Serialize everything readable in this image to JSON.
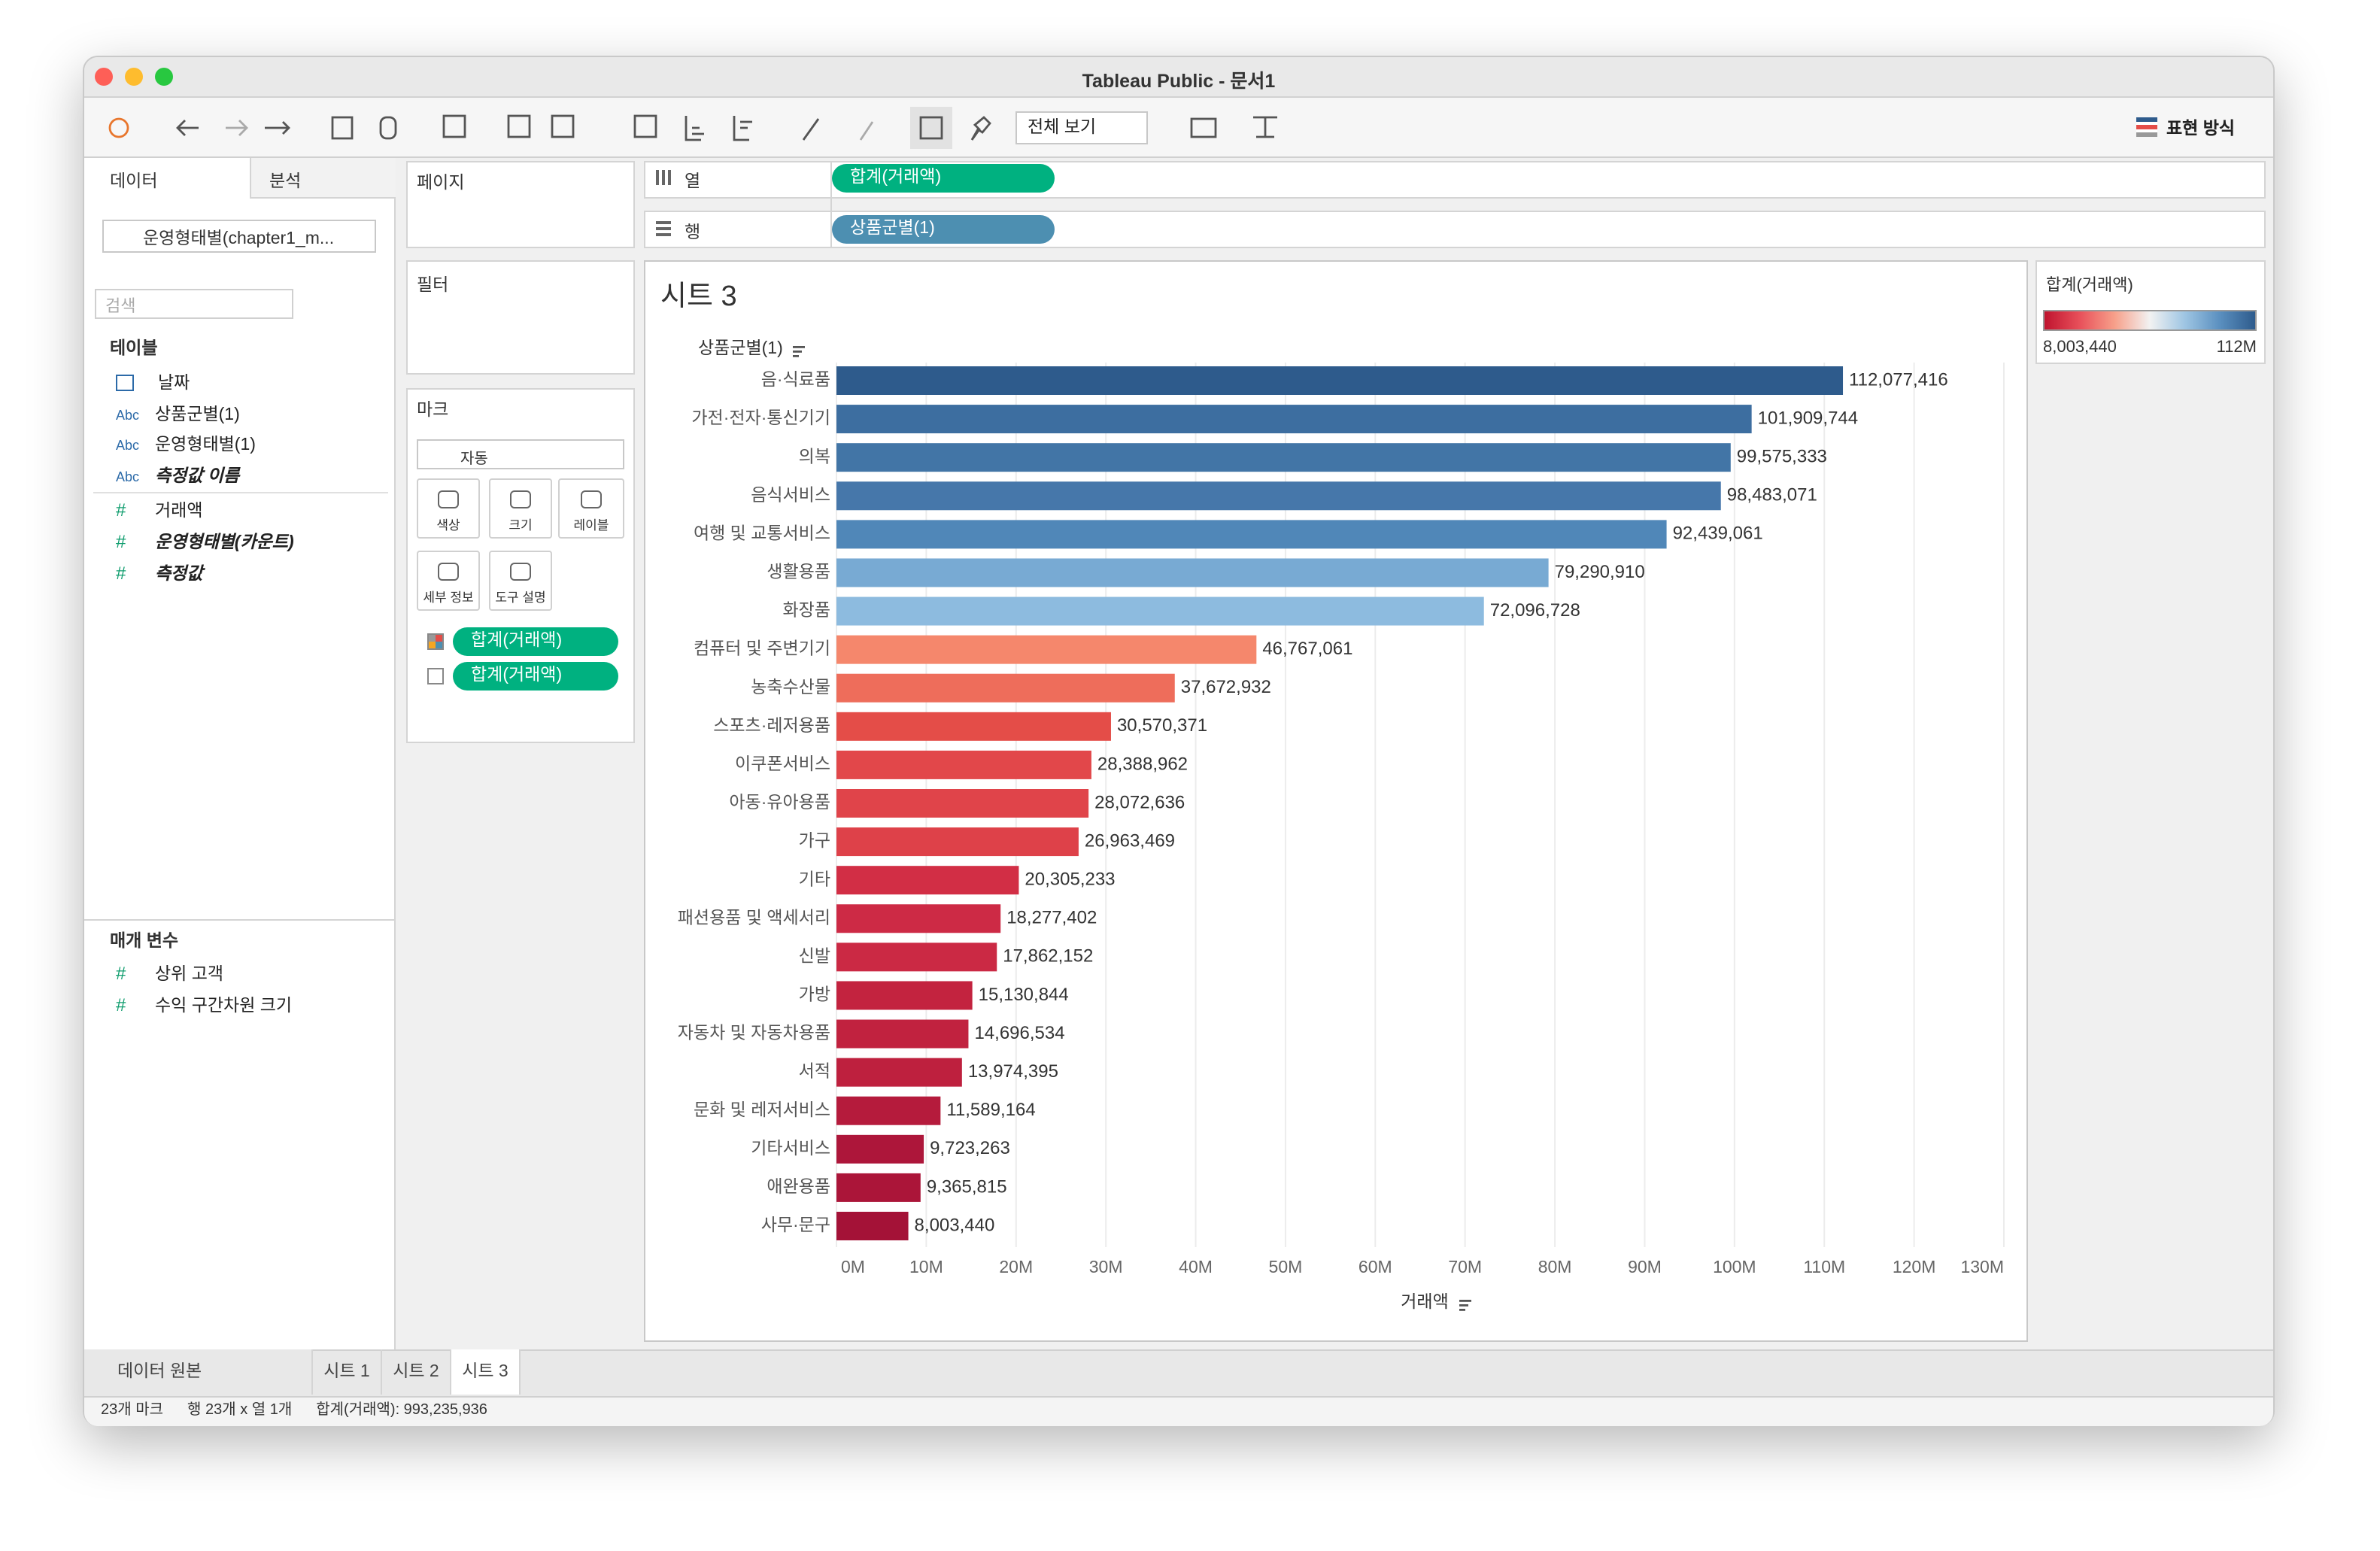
{
  "window": {
    "title": "Tableau Public - 문서1"
  },
  "toolbar": {
    "fit": "전체 보기",
    "show_me": "표현 방식"
  },
  "data_pane": {
    "tabs": [
      "데이터",
      "분석"
    ],
    "source": "운영형태별(chapter1_m...",
    "search": "검색",
    "tables_heading": "테이블",
    "fields": [
      {
        "name": "날짜"
      },
      {
        "kind": "Abc",
        "name": "상품군별(1)"
      },
      {
        "kind": "Abc",
        "name": "운영형태별(1)"
      },
      {
        "kind": "Abc",
        "name": "측정값 이름",
        "italic": true
      },
      {
        "kind": "#",
        "name": "거래액"
      },
      {
        "kind": "#",
        "name": "운영형태별(카운트)",
        "italic": true
      },
      {
        "kind": "#",
        "name": "측정값",
        "italic": true
      }
    ],
    "parameters_heading": "매개 변수",
    "parameters": [
      {
        "kind": "#",
        "name": "상위 고객"
      },
      {
        "kind": "#",
        "name": "수익 구간차원 크기"
      }
    ]
  },
  "shelves": {
    "pages": "페이지",
    "filters": "필터",
    "marks": "마크",
    "mark_type": "자동",
    "mark_buttons": [
      "색상",
      "크기",
      "레이블",
      "세부 정보",
      "도구 설명"
    ],
    "mark_pills": [
      "합계(거래액)",
      "합계(거래액)"
    ],
    "columns_label": "열",
    "columns_pill": "합계(거래액)",
    "rows_label": "행",
    "rows_pill": "상품군별(1)"
  },
  "chart_data": {
    "type": "bar",
    "orientation": "horizontal",
    "title": "시트 3",
    "y_label": "상품군별(1)",
    "x_label": "거래액",
    "categories": [
      "음·식료품",
      "가전·전자·통신기기",
      "의복",
      "음식서비스",
      "여행 및 교통서비스",
      "생활용품",
      "화장품",
      "컴퓨터 및 주변기기",
      "농축수산물",
      "스포츠·레저용품",
      "이쿠폰서비스",
      "아동·유아용품",
      "가구",
      "기타",
      "패션용품 및 액세서리",
      "신발",
      "가방",
      "자동차 및 자동차용품",
      "서적",
      "문화 및 레저서비스",
      "기타서비스",
      "애완용품",
      "사무·문구"
    ],
    "values": [
      112077416,
      101909744,
      99575333,
      98483071,
      92439061,
      79290910,
      72096728,
      46767061,
      37672932,
      30570371,
      28388962,
      28072636,
      26963469,
      20305233,
      18277402,
      17862152,
      15130844,
      14696534,
      13974395,
      11589164,
      9723263,
      9365815,
      8003440
    ],
    "value_labels": [
      "112,077,416",
      "101,909,744",
      "99,575,333",
      "98,483,071",
      "92,439,061",
      "79,290,910",
      "72,096,728",
      "46,767,061",
      "37,672,932",
      "30,570,371",
      "28,388,962",
      "28,072,636",
      "26,963,469",
      "20,305,233",
      "18,277,402",
      "17,862,152",
      "15,130,844",
      "14,696,534",
      "13,974,395",
      "11,589,164",
      "9,723,263",
      "9,365,815",
      "8,003,440"
    ],
    "colors": [
      "#2e5b8c",
      "#3d6ea0",
      "#4275a6",
      "#4677aa",
      "#5087b8",
      "#78aad3",
      "#8dbbdf",
      "#f5876c",
      "#ee6d5b",
      "#e44d48",
      "#e2474a",
      "#e0444a",
      "#de4149",
      "#d22e45",
      "#cd2a45",
      "#cb2944",
      "#c3233f",
      "#c1223f",
      "#be203e",
      "#b51b3c",
      "#ad163a",
      "#ab1539",
      "#a41237"
    ],
    "xlim": [
      0,
      130000000
    ],
    "xticks": [
      {
        "value": 0,
        "label": "0M"
      },
      {
        "value": 10000000,
        "label": "10M"
      },
      {
        "value": 20000000,
        "label": "20M"
      },
      {
        "value": 30000000,
        "label": "30M"
      },
      {
        "value": 40000000,
        "label": "40M"
      },
      {
        "value": 50000000,
        "label": "50M"
      },
      {
        "value": 60000000,
        "label": "60M"
      },
      {
        "value": 70000000,
        "label": "70M"
      },
      {
        "value": 80000000,
        "label": "80M"
      },
      {
        "value": 90000000,
        "label": "90M"
      },
      {
        "value": 100000000,
        "label": "100M"
      },
      {
        "value": 110000000,
        "label": "110M"
      },
      {
        "value": 120000000,
        "label": "120M"
      },
      {
        "value": 130000000,
        "label": "130M"
      }
    ],
    "grid": true,
    "legend": {
      "title": "합계(거래액)",
      "min_label": "8,003,440",
      "max_label": "112M",
      "colors": [
        "#c0142f",
        "#e8505a",
        "#f7a08a",
        "#f2f2f2",
        "#9ec5e3",
        "#5a8fbf",
        "#2e5b8c"
      ]
    }
  },
  "tabs": {
    "source": "데이터 원본",
    "sheets": [
      "시트 1",
      "시트 2",
      "시트 3"
    ]
  },
  "status": [
    "23개 마크",
    "행 23개 x 열 1개",
    "합계(거래액): 993,235,936"
  ]
}
